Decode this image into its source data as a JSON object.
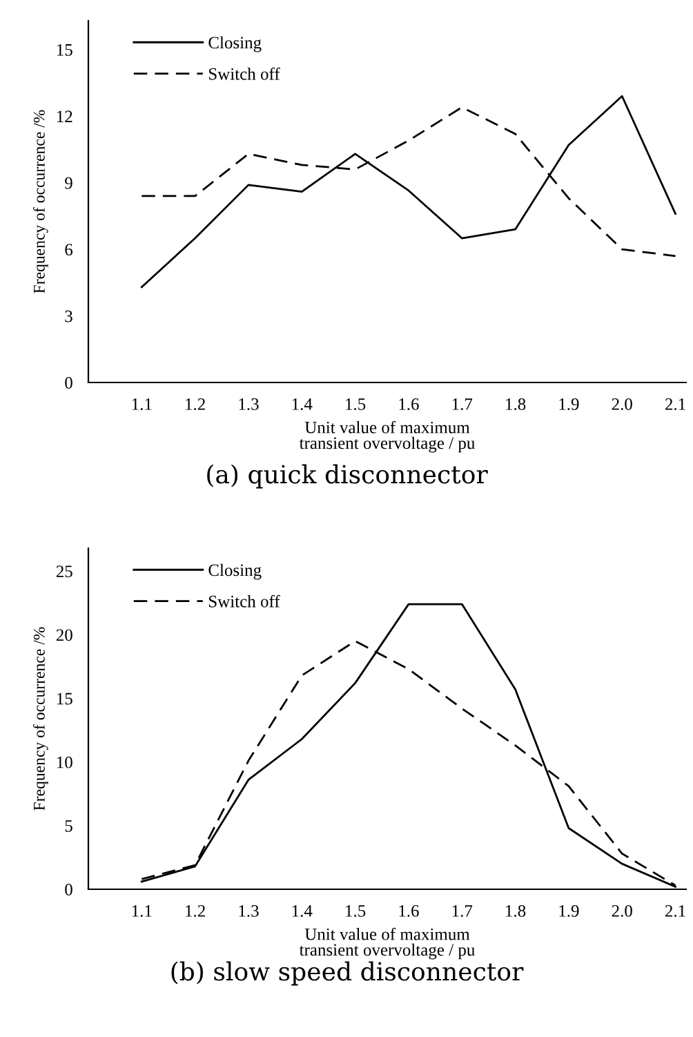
{
  "chart_data": [
    {
      "type": "line",
      "title": "(a) quick disconnector",
      "xlabel": "Unit value of maximum\ntransient overvoltage / pu",
      "ylabel": "Frequency of occurrence /%",
      "x": [
        1.1,
        1.2,
        1.3,
        1.4,
        1.5,
        1.6,
        1.7,
        1.8,
        1.9,
        2.0,
        2.1
      ],
      "series": [
        {
          "name": "Closing",
          "color": "#000000",
          "line_style": "solid",
          "values": [
            4.3,
            6.5,
            8.9,
            8.6,
            10.3,
            8.65,
            6.5,
            6.9,
            10.7,
            12.9,
            7.6
          ]
        },
        {
          "name": "Switch off",
          "color": "#000000",
          "line_style": "dashed",
          "values": [
            8.4,
            8.4,
            10.3,
            9.8,
            9.6,
            10.9,
            12.4,
            11.2,
            8.3,
            6.0,
            5.7
          ]
        }
      ],
      "xlim": [
        1.0,
        2.12
      ],
      "xticks": [
        1.1,
        1.2,
        1.3,
        1.4,
        1.5,
        1.6,
        1.7,
        1.8,
        1.9,
        {
          "value": 2.0,
          "label": "2.0"
        },
        2.1
      ],
      "ylim": [
        0,
        16.3
      ],
      "yticks": [
        0,
        3,
        6,
        9,
        12,
        15
      ],
      "grid": false,
      "legend": "top left",
      "marker": "none"
    },
    {
      "type": "line",
      "title": "(b) slow speed disconnector",
      "xlabel": "Unit value of maximum\ntransient overvoltage / pu",
      "ylabel": "Frequency of occurrence /%",
      "x": [
        1.1,
        1.2,
        1.3,
        1.4,
        1.5,
        1.6,
        1.7,
        1.8,
        1.9,
        2.0,
        2.1
      ],
      "series": [
        {
          "name": "Closing",
          "color": "#000000",
          "line_style": "solid",
          "values": [
            0.6,
            1.8,
            8.6,
            11.8,
            16.2,
            22.4,
            22.4,
            15.7,
            4.8,
            2.0,
            0.2
          ]
        },
        {
          "name": "Switch off",
          "color": "#000000",
          "line_style": "dashed",
          "values": [
            0.8,
            1.9,
            10.1,
            16.8,
            19.5,
            17.3,
            14.2,
            11.3,
            8.1,
            2.8,
            0.3
          ]
        }
      ],
      "xlim": [
        1.0,
        2.12
      ],
      "xticks": [
        1.1,
        1.2,
        1.3,
        1.4,
        1.5,
        1.6,
        1.7,
        1.8,
        1.9,
        {
          "value": 2.0,
          "label": "2.0"
        },
        2.1
      ],
      "ylim": [
        0,
        26.8
      ],
      "yticks": [
        0,
        5,
        10,
        15,
        20,
        25
      ],
      "grid": false,
      "legend": "top left",
      "marker": "none"
    }
  ]
}
